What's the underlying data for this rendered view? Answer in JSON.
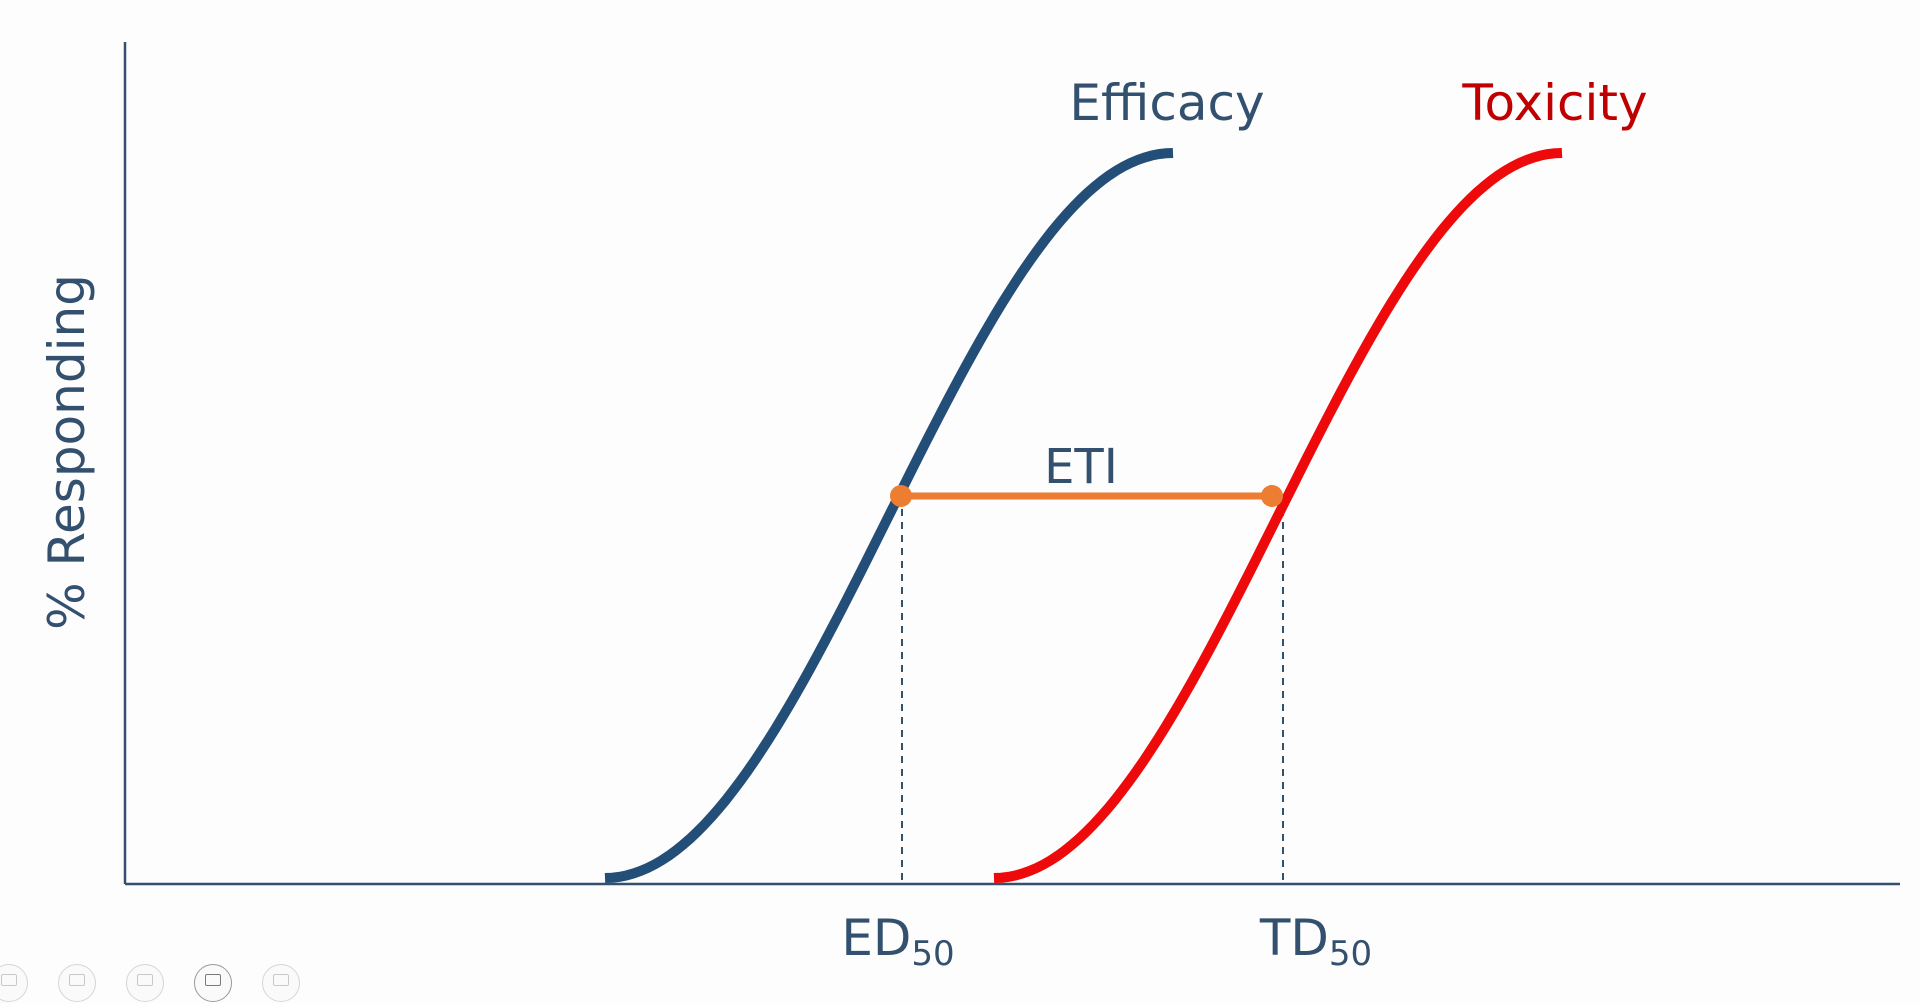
{
  "diagram": {
    "y_axis_label": "% Responding",
    "curves": [
      {
        "label": "Efficacy",
        "color": "#234e78"
      },
      {
        "label": "Toxicity",
        "color": "#ee0a0a"
      }
    ],
    "interval": {
      "label": "ETI",
      "color": "#ed7d31"
    },
    "x_ticks": [
      {
        "main": "ED",
        "sub": "50"
      },
      {
        "main": "TD",
        "sub": "50"
      }
    ],
    "colors": {
      "axis": "#33506e",
      "text": "#33506e",
      "toxicity_text": "#c00000",
      "guide": "#33506e"
    }
  },
  "toolbar": {
    "buttons": [
      {
        "icon": "arrow-icon"
      },
      {
        "icon": "pen-icon"
      },
      {
        "icon": "subtitle-icon"
      },
      {
        "icon": "camera-icon"
      },
      {
        "icon": "more-icon"
      }
    ]
  }
}
